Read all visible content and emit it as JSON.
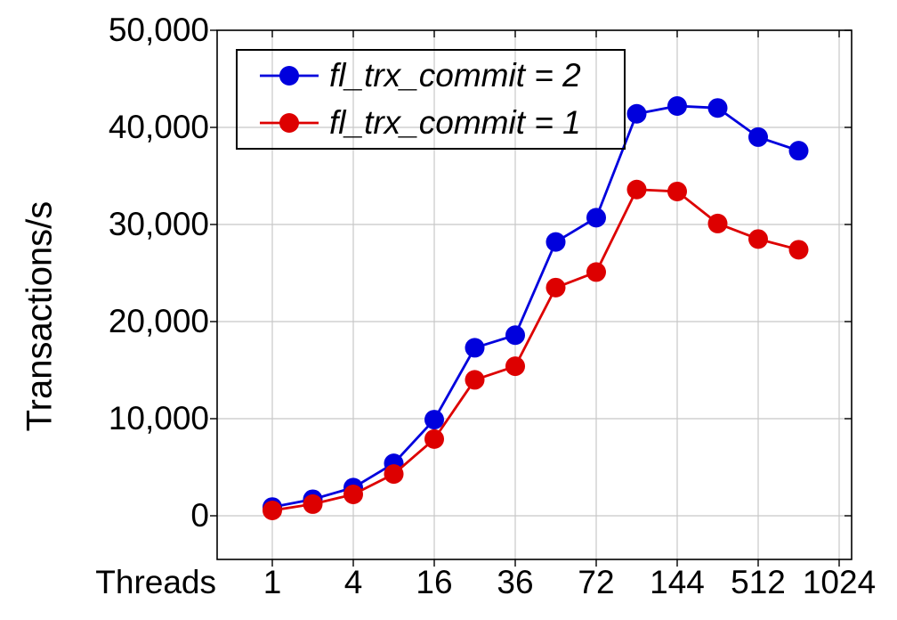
{
  "page": {
    "background": "#ffffff"
  },
  "chart_data": {
    "type": "line",
    "title": "",
    "xlabel": "Threads",
    "ylabel": "Transactions/s",
    "x_scale": "categorical log-like ticks; data points lie on labeled ticks and on midpoints between them",
    "x_tick_labels": [
      "1",
      "4",
      "16",
      "36",
      "72",
      "144",
      "512",
      "1024"
    ],
    "y_tick_labels": [
      "0",
      "10,000",
      "20,000",
      "30,000",
      "40,000",
      "50,000"
    ],
    "y_tick_values": [
      0,
      10000,
      20000,
      30000,
      40000,
      50000
    ],
    "ylim": [
      -4500,
      50000
    ],
    "grid": true,
    "colors": {
      "grid": "#c8c8c8",
      "axis": "#000000"
    },
    "legend": {
      "position": "top-left-inside",
      "border": true,
      "transparent_fill": true
    },
    "series": [
      {
        "name": "fl_trx_commit = 2",
        "color": "#0000dd",
        "marker": "circle",
        "points": [
          {
            "pos": 0,
            "value": 900
          },
          {
            "pos": 0.5,
            "value": 1700
          },
          {
            "pos": 1,
            "value": 2900
          },
          {
            "pos": 1.5,
            "value": 5400
          },
          {
            "pos": 2,
            "value": 9900
          },
          {
            "pos": 2.5,
            "value": 17300
          },
          {
            "pos": 3,
            "value": 18600
          },
          {
            "pos": 3.5,
            "value": 28200
          },
          {
            "pos": 4,
            "value": 30700
          },
          {
            "pos": 4.5,
            "value": 41400
          },
          {
            "pos": 5,
            "value": 42200
          },
          {
            "pos": 5.5,
            "value": 42000
          },
          {
            "pos": 6,
            "value": 39000
          },
          {
            "pos": 6.5,
            "value": 37600
          }
        ]
      },
      {
        "name": "fl_trx_commit = 1",
        "color": "#dd0000",
        "marker": "circle",
        "points": [
          {
            "pos": 0,
            "value": 550
          },
          {
            "pos": 0.5,
            "value": 1200
          },
          {
            "pos": 1,
            "value": 2200
          },
          {
            "pos": 1.5,
            "value": 4300
          },
          {
            "pos": 2,
            "value": 7900
          },
          {
            "pos": 2.5,
            "value": 14000
          },
          {
            "pos": 3,
            "value": 15400
          },
          {
            "pos": 3.5,
            "value": 23500
          },
          {
            "pos": 4,
            "value": 25100
          },
          {
            "pos": 4.5,
            "value": 33600
          },
          {
            "pos": 5,
            "value": 33400
          },
          {
            "pos": 5.5,
            "value": 30100
          },
          {
            "pos": 6,
            "value": 28500
          },
          {
            "pos": 6.5,
            "value": 27400
          }
        ]
      }
    ]
  }
}
